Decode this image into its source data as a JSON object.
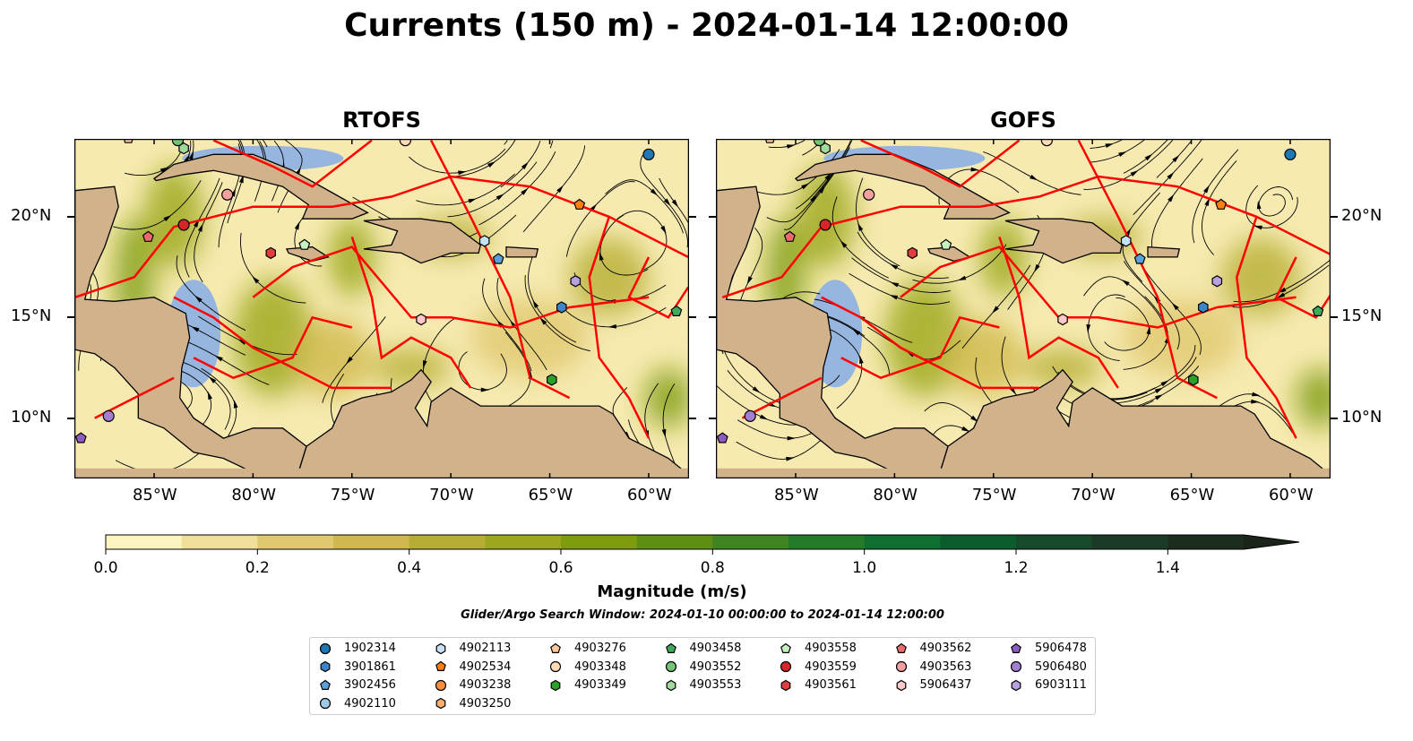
{
  "title": "Currents (150 m) - 2024-01-14 12:00:00",
  "panels": [
    {
      "title": "RTOFS",
      "model": "rtofs"
    },
    {
      "title": "GOFS",
      "model": "gofs"
    }
  ],
  "map_extent": {
    "lon": [
      -89.03,
      -57.96
    ],
    "lat": [
      7.0,
      23.87
    ]
  },
  "lon_ticks": [
    {
      "value": -85,
      "label": "85°W"
    },
    {
      "value": -80,
      "label": "80°W"
    },
    {
      "value": -75,
      "label": "75°W"
    },
    {
      "value": -70,
      "label": "70°W"
    },
    {
      "value": -65,
      "label": "65°W"
    },
    {
      "value": -60,
      "label": "60°W"
    }
  ],
  "lat_ticks": [
    {
      "value": 20,
      "label": "20°N"
    },
    {
      "value": 15,
      "label": "15°N"
    },
    {
      "value": 10,
      "label": "10°N"
    }
  ],
  "colorbar": {
    "label": "Magnitude (m/s)",
    "min": 0.0,
    "max": 1.5,
    "extend": "max",
    "ticks": [
      "0.0",
      "0.2",
      "0.4",
      "0.6",
      "0.8",
      "1.0",
      "1.2",
      "1.4"
    ],
    "colors": [
      "#fbf4c0",
      "#efdf9a",
      "#e0c870",
      "#cfb94e",
      "#b6ae34",
      "#9ba71d",
      "#7e9c0b",
      "#5e8e14",
      "#3f8420",
      "#247b2a",
      "#0f6e30",
      "#0b5d2e",
      "#164a2b",
      "#1b3b26",
      "#1d2d1d"
    ],
    "over_color": "#1a2419"
  },
  "search_window": "Glider/Argo Search Window: 2024-01-10 00:00:00 to 2024-01-14 12:00:00",
  "legend": [
    {
      "id": "1902314",
      "marker": "circle",
      "color": "#1f77b4"
    },
    {
      "id": "3901861",
      "marker": "hexagon",
      "color": "#3a86c8"
    },
    {
      "id": "3902456",
      "marker": "pentagon",
      "color": "#5aa0dc"
    },
    {
      "id": "4902110",
      "marker": "circle",
      "color": "#9ecae9"
    },
    {
      "id": "4902113",
      "marker": "hexagon",
      "color": "#c6e2f7"
    },
    {
      "id": "4902534",
      "marker": "pentagon",
      "color": "#ff7f0e"
    },
    {
      "id": "4903238",
      "marker": "circle",
      "color": "#fd8d3c"
    },
    {
      "id": "4903250",
      "marker": "hexagon",
      "color": "#fdae6b"
    },
    {
      "id": "4903276",
      "marker": "pentagon",
      "color": "#fdc69a"
    },
    {
      "id": "4903348",
      "marker": "circle",
      "color": "#fddbb9"
    },
    {
      "id": "4903349",
      "marker": "hexagon",
      "color": "#2ca02c"
    },
    {
      "id": "4903458",
      "marker": "pentagon",
      "color": "#41ab5d"
    },
    {
      "id": "4903552",
      "marker": "circle",
      "color": "#74c476"
    },
    {
      "id": "4903553",
      "marker": "hexagon",
      "color": "#a1d99b"
    },
    {
      "id": "4903558",
      "marker": "pentagon",
      "color": "#c7f0c0"
    },
    {
      "id": "4903559",
      "marker": "circle",
      "color": "#d62728"
    },
    {
      "id": "4903561",
      "marker": "hexagon",
      "color": "#de3e3e"
    },
    {
      "id": "4903562",
      "marker": "pentagon",
      "color": "#ec6a6a"
    },
    {
      "id": "4903563",
      "marker": "circle",
      "color": "#f4a0a0"
    },
    {
      "id": "5906437",
      "marker": "hexagon",
      "color": "#fcc8c8"
    },
    {
      "id": "5906478",
      "marker": "pentagon",
      "color": "#8e5cc0"
    },
    {
      "id": "5906480",
      "marker": "circle",
      "color": "#a37fd1"
    },
    {
      "id": "6903111",
      "marker": "hexagon",
      "color": "#b9a0e0"
    }
  ],
  "floats": [
    {
      "id": "1902314",
      "lon": -60.0,
      "lat": 23.1
    },
    {
      "id": "4903559",
      "lon": -83.5,
      "lat": 19.6
    },
    {
      "id": "4903563",
      "lon": -81.3,
      "lat": 21.1
    },
    {
      "id": "4903562",
      "lon": -85.3,
      "lat": 19.0
    },
    {
      "id": "4903561",
      "lon": -79.1,
      "lat": 18.2
    },
    {
      "id": "4903558",
      "lon": -77.4,
      "lat": 18.6
    },
    {
      "id": "4902113",
      "lon": -68.3,
      "lat": 18.8
    },
    {
      "id": "3902456",
      "lon": -67.6,
      "lat": 17.9
    },
    {
      "id": "4902534",
      "lon": -63.5,
      "lat": 20.6
    },
    {
      "id": "6903111",
      "lon": -63.7,
      "lat": 16.8
    },
    {
      "id": "3901861",
      "lon": -64.4,
      "lat": 15.5
    },
    {
      "id": "4903458",
      "lon": -58.6,
      "lat": 15.3
    },
    {
      "id": "4903349",
      "lon": -64.9,
      "lat": 11.9
    },
    {
      "id": "5906437",
      "lon": -71.5,
      "lat": 14.9
    },
    {
      "id": "5906480",
      "lon": -87.3,
      "lat": 10.1
    },
    {
      "id": "5906478",
      "lon": -88.7,
      "lat": 9.0
    },
    {
      "id": "4903553",
      "lon": -83.5,
      "lat": 23.4
    },
    {
      "id": "4903552",
      "lon": -83.8,
      "lat": 23.8
    },
    {
      "id": "4903348",
      "lon": -72.3,
      "lat": 23.8
    },
    {
      "id": "4903276",
      "lon": -86.3,
      "lat": 23.9
    }
  ]
}
